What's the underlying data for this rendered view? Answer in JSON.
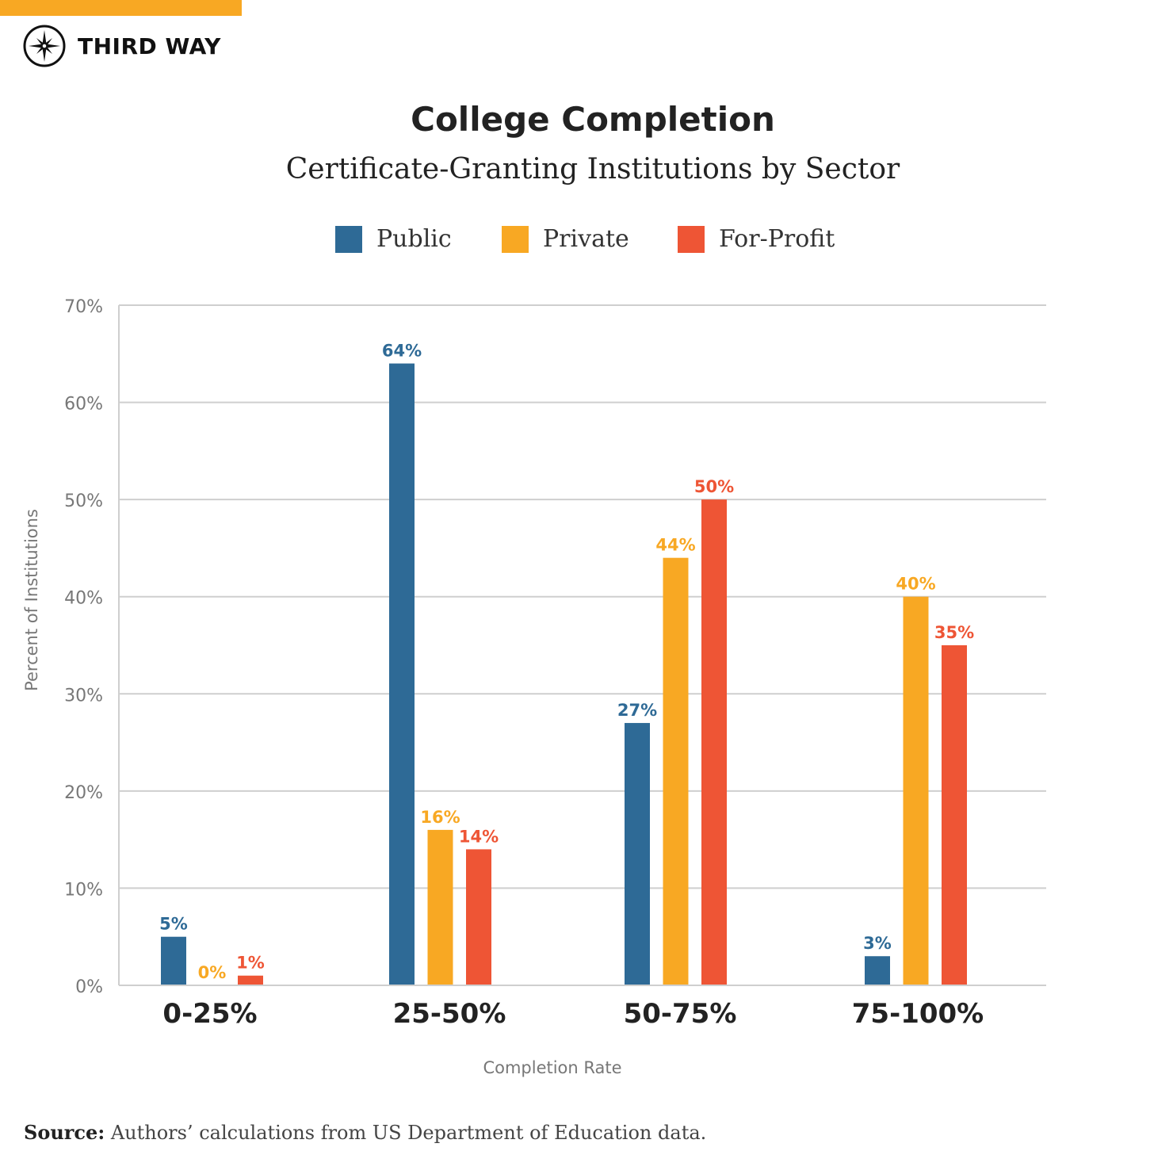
{
  "brand": {
    "name": "THIRD WAY",
    "accent": "#f8a823"
  },
  "chart_data": {
    "type": "bar",
    "title": "College Completion",
    "subtitle": "Certificate-Granting Institutions by Sector",
    "xlabel": "Completion Rate",
    "ylabel": "Percent of Institutions",
    "categories": [
      "0-25%",
      "25-50%",
      "50-75%",
      "75-100%"
    ],
    "series": [
      {
        "name": "Public",
        "color": "#2e6a96",
        "values": [
          5,
          64,
          27,
          3
        ]
      },
      {
        "name": "Private",
        "color": "#f8a823",
        "values": [
          0,
          16,
          44,
          40
        ]
      },
      {
        "name": "For-Profit",
        "color": "#ee5535",
        "values": [
          1,
          14,
          50,
          35
        ]
      }
    ],
    "ylim": [
      0,
      70
    ],
    "yticks": [
      "0%",
      "10%",
      "20%",
      "30%",
      "40%",
      "50%",
      "60%",
      "70%"
    ],
    "grid": true,
    "legend": "top"
  },
  "source": {
    "label": "Source:",
    "text": "Authors’ calculations from US Department of Education data."
  }
}
